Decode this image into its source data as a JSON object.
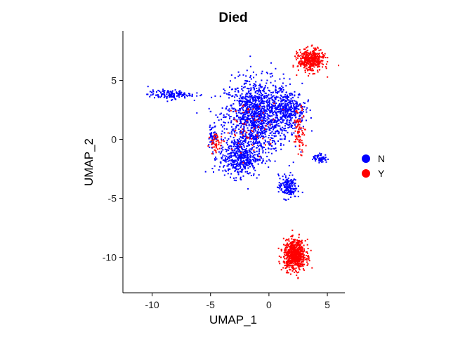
{
  "chart_data": {
    "type": "scatter",
    "title": "Died",
    "xlabel": "UMAP_1",
    "ylabel": "UMAP_2",
    "xlim": [
      -12.5,
      6.5
    ],
    "ylim": [
      -13,
      9.2
    ],
    "x_ticks": [
      -10,
      -5,
      0,
      5
    ],
    "y_ticks": [
      -10,
      -5,
      0,
      5
    ],
    "x_tick_labels": [
      "-10",
      "-5",
      "0",
      "5"
    ],
    "y_tick_labels": [
      "-10",
      "-5",
      "0",
      "5"
    ],
    "grid": false,
    "legend_position": "right",
    "series": [
      {
        "name": "N",
        "color": "#0000ff",
        "clusters": [
          {
            "center": [
              -1.0,
              2.0
            ],
            "spread": [
              2.5,
              2.8
            ],
            "n": 1300
          },
          {
            "center": [
              -2.5,
              -1.5
            ],
            "spread": [
              1.6,
              1.5
            ],
            "n": 450
          },
          {
            "center": [
              1.8,
              2.5
            ],
            "spread": [
              1.2,
              1.5
            ],
            "n": 300
          },
          {
            "center": [
              -8.5,
              3.8
            ],
            "spread": [
              1.7,
              0.35
            ],
            "n": 140
          },
          {
            "center": [
              1.6,
              -4.0
            ],
            "spread": [
              0.7,
              0.9
            ],
            "n": 170
          },
          {
            "center": [
              4.4,
              -1.6
            ],
            "spread": [
              0.55,
              0.35
            ],
            "n": 60
          },
          {
            "center": [
              -4.8,
              0.3
            ],
            "spread": [
              0.35,
              0.9
            ],
            "n": 50
          }
        ]
      },
      {
        "name": "Y",
        "color": "#ff0000",
        "clusters": [
          {
            "center": [
              2.2,
              -9.8
            ],
            "spread": [
              0.85,
              1.15
            ],
            "n": 700
          },
          {
            "center": [
              3.6,
              6.7
            ],
            "spread": [
              1.0,
              0.85
            ],
            "n": 420
          },
          {
            "center": [
              2.6,
              0.8
            ],
            "spread": [
              0.45,
              1.7
            ],
            "n": 80
          },
          {
            "center": [
              -4.5,
              -0.3
            ],
            "spread": [
              0.5,
              0.7
            ],
            "n": 50
          },
          {
            "center": [
              -1.5,
              1.0
            ],
            "spread": [
              2.0,
              2.0
            ],
            "n": 60
          }
        ]
      }
    ]
  }
}
